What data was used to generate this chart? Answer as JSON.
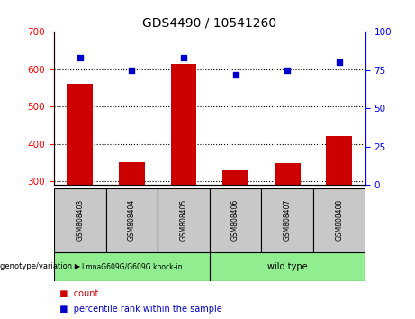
{
  "title": "GDS4490 / 10541260",
  "samples": [
    "GSM808403",
    "GSM808404",
    "GSM808405",
    "GSM808406",
    "GSM808407",
    "GSM808408"
  ],
  "counts": [
    560,
    350,
    615,
    330,
    348,
    420
  ],
  "percentiles": [
    83,
    75,
    83,
    72,
    75,
    80
  ],
  "ylim_left": [
    290,
    700
  ],
  "ylim_right": [
    0,
    100
  ],
  "yticks_left": [
    300,
    400,
    500,
    600,
    700
  ],
  "yticks_right": [
    0,
    25,
    50,
    75,
    100
  ],
  "bar_color": "#cc0000",
  "dot_color": "#0000cc",
  "bar_bottom": 290,
  "group_green_color": "#90ee90",
  "xlabel_area_color": "#c8c8c8",
  "legend_count_label": "count",
  "legend_percentile_label": "percentile rank within the sample",
  "genotype_label": "genotype/variation",
  "group1_label": "LmnaG609G/G609G knock-in",
  "group2_label": "wild type"
}
